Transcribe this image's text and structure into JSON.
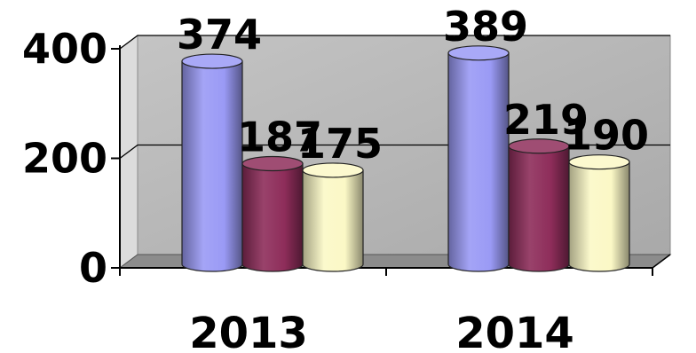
{
  "chart_data": {
    "type": "bar",
    "title": "",
    "xlabel": "",
    "ylabel": "",
    "categories": [
      "2013",
      "2014"
    ],
    "ylim": [
      0,
      400
    ],
    "y_ticks": [
      "0",
      "200",
      "400"
    ],
    "grid": true,
    "style": "3d-cylinder",
    "series": [
      {
        "values": [
          374,
          389
        ],
        "color": "#9a9af5"
      },
      {
        "values": [
          187,
          219
        ],
        "color": "#8e2d5a"
      },
      {
        "values": [
          175,
          190
        ],
        "color": "#fbf8c6"
      }
    ],
    "data_labels": [
      [
        "374",
        "389"
      ],
      [
        "187",
        "219"
      ],
      [
        "175",
        "190"
      ]
    ]
  }
}
